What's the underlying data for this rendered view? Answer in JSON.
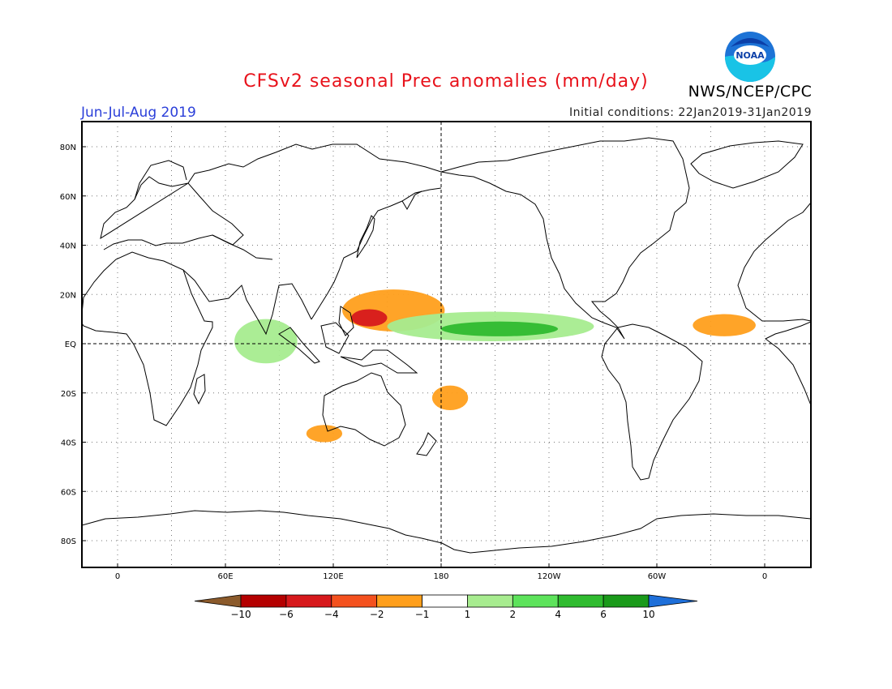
{
  "header": {
    "title": "CFSv2 seasonal Prec anomalies (mm/day)",
    "agency": "NWS/NCEP/CPC",
    "season": "Jun-Jul-Aug 2019",
    "initial_conditions": "Initial conditions: 22Jan2019-31Jan2019",
    "logo_text": "NOAA"
  },
  "map": {
    "lat_ticks": [
      "80N",
      "60N",
      "40N",
      "20N",
      "EQ",
      "20S",
      "40S",
      "60S",
      "80S"
    ],
    "lon_ticks": [
      "0",
      "60E",
      "120E",
      "180",
      "120W",
      "60W",
      "0"
    ]
  },
  "colorbar": {
    "labels": [
      "-10",
      "-6",
      "-4",
      "-2",
      "-1",
      "1",
      "2",
      "4",
      "6",
      "10"
    ],
    "colors": [
      "#8b5a2b",
      "#b40000",
      "#d7191c",
      "#f4511e",
      "#ff9f1c",
      "#ffffff",
      "#a7ec8f",
      "#5de35b",
      "#2fbb2f",
      "#1a9a1a",
      "#1e6fd9"
    ]
  },
  "anomaly_regions": [
    {
      "name": "West Pacific dry core",
      "lon": [
        130,
        150
      ],
      "lat": [
        7,
        14
      ],
      "level": "-4"
    },
    {
      "name": "West Pacific dry belt",
      "lon": [
        125,
        182
      ],
      "lat": [
        5,
        22
      ],
      "level": "-2"
    },
    {
      "name": "Central/East Pacific wet belt",
      "lon": [
        150,
        265
      ],
      "lat": [
        1,
        13
      ],
      "level": "2"
    },
    {
      "name": "Central Pacific wet core",
      "lon": [
        180,
        245
      ],
      "lat": [
        3,
        9
      ],
      "level": "4"
    },
    {
      "name": "Indian Ocean wet band",
      "lon": [
        65,
        100
      ],
      "lat": [
        -8,
        10
      ],
      "level": "2"
    },
    {
      "name": "Eastern Atlantic dry",
      "lon": [
        320,
        355
      ],
      "lat": [
        3,
        12
      ],
      "level": "-2"
    },
    {
      "name": "South Pacific dry",
      "lon": [
        175,
        195
      ],
      "lat": [
        -27,
        -17
      ],
      "level": "-2"
    },
    {
      "name": "Southern Indian Ocean dry",
      "lon": [
        105,
        125
      ],
      "lat": [
        -40,
        -33
      ],
      "level": "-2"
    }
  ]
}
